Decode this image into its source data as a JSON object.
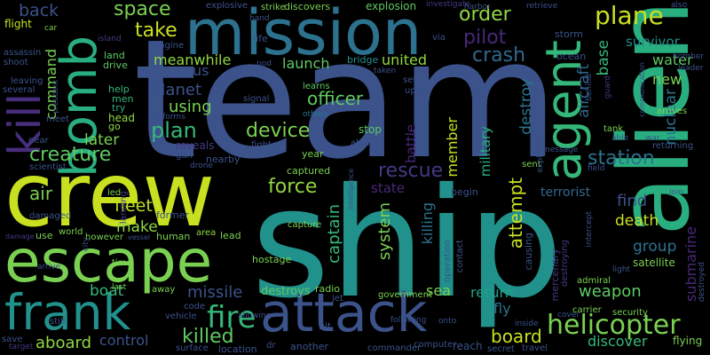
{
  "words": [
    {
      "text": "team",
      "color": "#3b528b"
    },
    {
      "text": "ship",
      "color": "#21918c"
    },
    {
      "text": "crew",
      "color": "#c8e020"
    },
    {
      "text": "alien",
      "color": "#29af7f"
    },
    {
      "text": "mission",
      "color": "#2c728e"
    },
    {
      "text": "escape",
      "color": "#7ad151"
    },
    {
      "text": "frank",
      "color": "#21918c"
    },
    {
      "text": "attack",
      "color": "#3b528b"
    },
    {
      "text": "agent",
      "color": "#35b779"
    },
    {
      "text": "bomb",
      "color": "#29af7f"
    },
    {
      "text": "kill",
      "color": "#472d7b"
    },
    {
      "text": "fire",
      "color": "#35b779"
    },
    {
      "text": "helicopter",
      "color": "#7ad151"
    },
    {
      "text": "killed",
      "color": "#5ec962"
    },
    {
      "text": "plane",
      "color": "#c8e020"
    },
    {
      "text": "order",
      "color": "#90d743"
    },
    {
      "text": "pilot",
      "color": "#482878"
    },
    {
      "text": "crash",
      "color": "#31688e"
    },
    {
      "text": "rescue",
      "color": "#443983"
    },
    {
      "text": "force",
      "color": "#90d743"
    },
    {
      "text": "creature",
      "color": "#5ec962"
    },
    {
      "text": "device",
      "color": "#7ad151"
    },
    {
      "text": "plan",
      "color": "#35b779"
    },
    {
      "text": "station",
      "color": "#2c728e"
    },
    {
      "text": "space",
      "color": "#7ad151"
    },
    {
      "text": "back",
      "color": "#3b528b"
    },
    {
      "text": "take",
      "color": "#c8e020"
    },
    {
      "text": "officer",
      "color": "#5ec962"
    },
    {
      "text": "launch",
      "color": "#5ec962"
    },
    {
      "text": "united",
      "color": "#90d743"
    },
    {
      "text": "air",
      "color": "#7ad151"
    },
    {
      "text": "later",
      "color": "#7ad151"
    },
    {
      "text": "meanwhile",
      "color": "#90d743"
    },
    {
      "text": "us",
      "color": "#3b528b"
    },
    {
      "text": "planet",
      "color": "#3b528b"
    },
    {
      "text": "using",
      "color": "#7ad151"
    },
    {
      "text": "fleet",
      "color": "#bddf26"
    },
    {
      "text": "make",
      "color": "#90d743"
    },
    {
      "text": "boat",
      "color": "#35b779"
    },
    {
      "text": "missile",
      "color": "#3b528b"
    },
    {
      "text": "destroys",
      "color": "#5ec962"
    },
    {
      "text": "control",
      "color": "#3b528b"
    },
    {
      "text": "aboard",
      "color": "#90d743"
    },
    {
      "text": "board",
      "color": "#c8e020"
    },
    {
      "text": "weapon",
      "color": "#5ec962"
    },
    {
      "text": "return",
      "color": "#1fa188"
    },
    {
      "text": "sea",
      "color": "#7ad151"
    },
    {
      "text": "fly",
      "color": "#2c728e"
    },
    {
      "text": "discover",
      "color": "#35b779"
    },
    {
      "text": "death",
      "color": "#c8e020"
    },
    {
      "text": "group",
      "color": "#2c728e"
    },
    {
      "text": "find",
      "color": "#3b528b"
    },
    {
      "text": "water",
      "color": "#5ec962"
    },
    {
      "text": "new",
      "color": "#7ad151"
    },
    {
      "text": "survivor",
      "color": "#21918c"
    },
    {
      "text": "terrorist",
      "color": "#31688e"
    },
    {
      "text": "state",
      "color": "#482878"
    },
    {
      "text": "system",
      "color": "#7ad151"
    },
    {
      "text": "captain",
      "color": "#35b779"
    },
    {
      "text": "killing",
      "color": "#2c728e"
    },
    {
      "text": "attempt",
      "color": "#c8e020"
    },
    {
      "text": "member",
      "color": "#c8e020"
    },
    {
      "text": "military",
      "color": "#29af7f"
    },
    {
      "text": "destroy",
      "color": "#2c728e"
    },
    {
      "text": "base",
      "color": "#35b779"
    },
    {
      "text": "aircraft",
      "color": "#31688e"
    },
    {
      "text": "nuclear",
      "color": "#2c728e"
    },
    {
      "text": "submarine",
      "color": "#482878"
    },
    {
      "text": "battle",
      "color": "#482878"
    },
    {
      "text": "satellite",
      "color": "#7ad151"
    },
    {
      "text": "explosion",
      "color": "#5ec962"
    },
    {
      "text": "discovers",
      "color": "#7ad151"
    },
    {
      "text": "explosive",
      "color": "#3b528b"
    },
    {
      "text": "strike",
      "color": "#7ad151"
    },
    {
      "text": "flight",
      "color": "#c8e020"
    },
    {
      "text": "command",
      "color": "#7ad151"
    },
    {
      "text": "help",
      "color": "#35b779"
    },
    {
      "text": "men",
      "color": "#35b779"
    },
    {
      "text": "try",
      "color": "#29af7f"
    },
    {
      "text": "head",
      "color": "#90d743"
    },
    {
      "text": "go",
      "color": "#90d743"
    },
    {
      "text": "land",
      "color": "#5ec962"
    },
    {
      "text": "drive",
      "color": "#5ec962"
    },
    {
      "text": "engine",
      "color": "#3b528b"
    },
    {
      "text": "life",
      "color": "#3b528b"
    },
    {
      "text": "pod",
      "color": "#3b528b"
    },
    {
      "text": "bridge",
      "color": "#21918c"
    },
    {
      "text": "learns",
      "color": "#5ec962"
    },
    {
      "text": "others",
      "color": "#2c728e"
    },
    {
      "text": "signal",
      "color": "#3b528b"
    },
    {
      "text": "informs",
      "color": "#3b528b"
    },
    {
      "text": "reveals",
      "color": "#443983"
    },
    {
      "text": "gun",
      "color": "#3b528b"
    },
    {
      "text": "drone",
      "color": "#3b528b"
    },
    {
      "text": "nearby",
      "color": "#3b528b"
    },
    {
      "text": "fighter",
      "color": "#3b528b"
    },
    {
      "text": "year",
      "color": "#7ad151"
    },
    {
      "text": "stop",
      "color": "#5ec962"
    },
    {
      "text": "along",
      "color": "#3b528b"
    },
    {
      "text": "captured",
      "color": "#7ad151"
    },
    {
      "text": "capture",
      "color": "#7ad151"
    },
    {
      "text": "begin",
      "color": "#3b528b"
    },
    {
      "text": "former",
      "color": "#3b528b"
    },
    {
      "text": "human",
      "color": "#7ad151"
    },
    {
      "text": "area",
      "color": "#90d743"
    },
    {
      "text": "lead",
      "color": "#7ad151"
    },
    {
      "text": "hostage",
      "color": "#7ad151"
    },
    {
      "text": "radio",
      "color": "#7ad151"
    },
    {
      "text": "jet",
      "color": "#3b528b"
    },
    {
      "text": "government",
      "color": "#7ad151"
    },
    {
      "text": "operation",
      "color": "#3b528b"
    },
    {
      "text": "contact",
      "color": "#3b528b"
    },
    {
      "text": "causing",
      "color": "#3b528b"
    },
    {
      "text": "mercenary",
      "color": "#443983"
    },
    {
      "text": "destroying",
      "color": "#443983"
    },
    {
      "text": "admiral",
      "color": "#7ad151"
    },
    {
      "text": "carrier",
      "color": "#7ad151"
    },
    {
      "text": "security",
      "color": "#7ad151"
    },
    {
      "text": "flying",
      "color": "#7ad151"
    },
    {
      "text": "arrives",
      "color": "#7ad151"
    },
    {
      "text": "returning",
      "color": "#3b528b"
    },
    {
      "text": "tank",
      "color": "#7ad151"
    },
    {
      "text": "able",
      "color": "#3b528b"
    },
    {
      "text": "join",
      "color": "#3b528b"
    },
    {
      "text": "ocean",
      "color": "#3b528b"
    },
    {
      "text": "storm",
      "color": "#3b528b"
    },
    {
      "text": "sent",
      "color": "#7ad151"
    },
    {
      "text": "message",
      "color": "#3b528b"
    },
    {
      "text": "commander",
      "color": "#3b528b"
    },
    {
      "text": "reach",
      "color": "#3b528b"
    },
    {
      "text": "secret",
      "color": "#3b528b"
    },
    {
      "text": "travel",
      "color": "#3b528b"
    },
    {
      "text": "computer",
      "color": "#3b528b"
    },
    {
      "text": "another",
      "color": "#3b528b"
    },
    {
      "text": "location",
      "color": "#3b528b"
    },
    {
      "text": "surface",
      "color": "#3b528b"
    },
    {
      "text": "vehicle",
      "color": "#3b528b"
    },
    {
      "text": "code",
      "color": "#3b528b"
    },
    {
      "text": "hit",
      "color": "#3b528b"
    },
    {
      "text": "save",
      "color": "#3b528b"
    },
    {
      "text": "target",
      "color": "#443983"
    },
    {
      "text": "still",
      "color": "#3b528b"
    },
    {
      "text": "away",
      "color": "#7ad151"
    },
    {
      "text": "last",
      "color": "#7ad151"
    },
    {
      "text": "time",
      "color": "#7ad151"
    },
    {
      "text": "arrive",
      "color": "#3b528b"
    },
    {
      "text": "use",
      "color": "#7ad151"
    },
    {
      "text": "world",
      "color": "#7ad151"
    },
    {
      "text": "however",
      "color": "#7ad151"
    },
    {
      "text": "damaged",
      "color": "#3b528b"
    },
    {
      "text": "damage",
      "color": "#443983"
    },
    {
      "text": "led",
      "color": "#7ad151"
    },
    {
      "text": "landing",
      "color": "#443983"
    },
    {
      "text": "scientist",
      "color": "#3b528b"
    },
    {
      "text": "near",
      "color": "#3b528b"
    },
    {
      "text": "meet",
      "color": "#3b528b"
    },
    {
      "text": "several",
      "color": "#3b528b"
    },
    {
      "text": "leaving",
      "color": "#3b528b"
    },
    {
      "text": "shoot",
      "color": "#3b528b"
    },
    {
      "text": "assassin",
      "color": "#3b528b"
    },
    {
      "text": "car",
      "color": "#7ad151"
    },
    {
      "text": "island",
      "color": "#443983"
    },
    {
      "text": "hand",
      "color": "#3b528b"
    },
    {
      "text": "taken",
      "color": "#3b528b"
    },
    {
      "text": "upon",
      "color": "#3b528b"
    },
    {
      "text": "set",
      "color": "#3b528b"
    },
    {
      "text": "via",
      "color": "#3b528b"
    },
    {
      "text": "investigate",
      "color": "#443983"
    },
    {
      "text": "retrieve",
      "color": "#3b528b"
    },
    {
      "text": "also",
      "color": "#3b528b"
    },
    {
      "text": "bomber",
      "color": "#3b528b"
    },
    {
      "text": "leader",
      "color": "#3b528b"
    },
    {
      "text": "communication",
      "color": "#3b528b"
    },
    {
      "text": "explodes",
      "color": "#3b528b"
    },
    {
      "text": "harbor",
      "color": "#3b528b"
    },
    {
      "text": "guard",
      "color": "#443983"
    },
    {
      "text": "field",
      "color": "#3b528b"
    },
    {
      "text": "intercept",
      "color": "#3b528b"
    },
    {
      "text": "light",
      "color": "#3b528b"
    },
    {
      "text": "destroyed",
      "color": "#3b528b"
    },
    {
      "text": "onto",
      "color": "#3b528b"
    },
    {
      "text": "inside",
      "color": "#3b528b"
    },
    {
      "text": "cover",
      "color": "#3b528b"
    },
    {
      "text": "allowing",
      "color": "#3b528b"
    },
    {
      "text": "following",
      "color": "#3b528b"
    },
    {
      "text": "intelligence",
      "color": "#3b528b"
    },
    {
      "text": "behind",
      "color": "#3b528b"
    },
    {
      "text": "war",
      "color": "#3b528b"
    },
    {
      "text": "dr",
      "color": "#3b528b"
    },
    {
      "text": "city",
      "color": "#3b528b"
    },
    {
      "text": "vessel",
      "color": "#3b528b"
    },
    {
      "text": "president",
      "color": "#3b528b"
    }
  ]
}
